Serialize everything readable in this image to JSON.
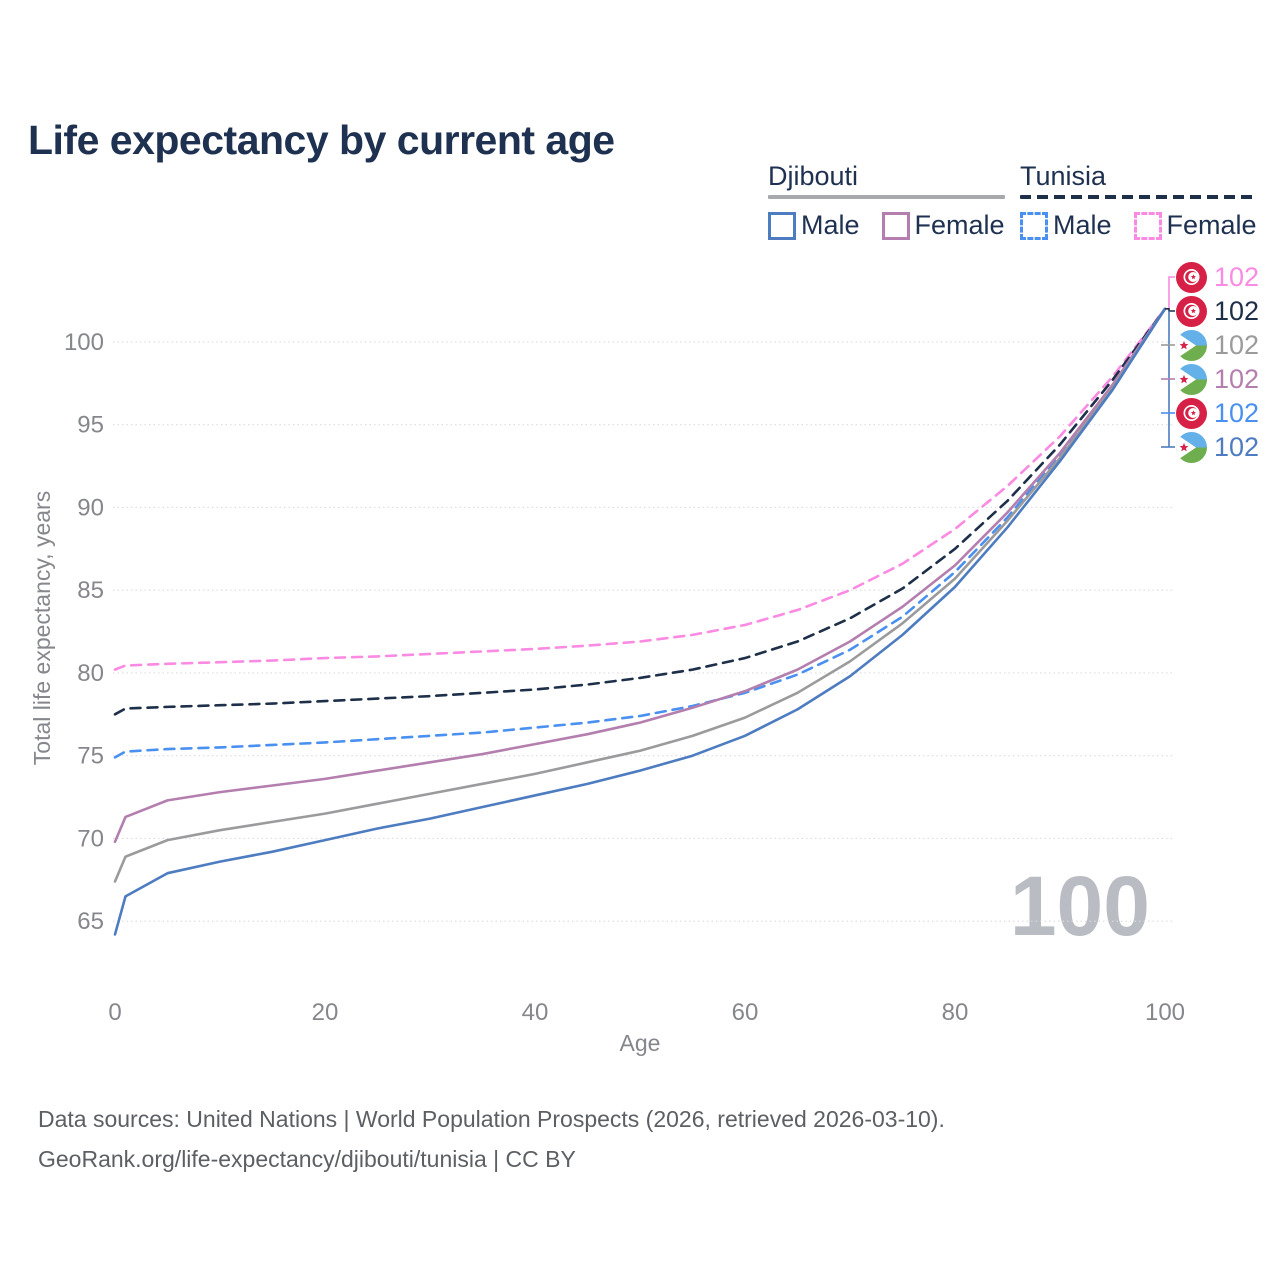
{
  "title": "Life expectancy by current age",
  "legend": {
    "groups": [
      {
        "country": "Djibouti",
        "line_style": "solid",
        "underline_color": "#a7a9ab",
        "items": [
          {
            "label": "Male",
            "color": "#4d7cc0"
          },
          {
            "label": "Female",
            "color": "#b47fae"
          }
        ]
      },
      {
        "country": "Tunisia",
        "line_style": "dashed",
        "underline_color": "#1d2f49",
        "items": [
          {
            "label": "Male",
            "color": "#4a90f0"
          },
          {
            "label": "Female",
            "color": "#fb8ae2"
          }
        ]
      }
    ]
  },
  "chart_data": {
    "type": "line",
    "title": "Life expectancy by current age",
    "xlabel": "Age",
    "ylabel": "Total life expectancy, years",
    "xlim": [
      0,
      100
    ],
    "ylim": [
      63.5,
      103.5
    ],
    "x_ticks": [
      0,
      20,
      40,
      60,
      80,
      100
    ],
    "y_ticks": [
      65,
      70,
      75,
      80,
      85,
      90,
      95,
      100
    ],
    "grid": "horizontal-dotted",
    "legend_position": "top-right",
    "x": [
      0,
      1,
      5,
      10,
      15,
      20,
      25,
      30,
      35,
      40,
      45,
      50,
      55,
      60,
      65,
      70,
      75,
      80,
      85,
      90,
      95,
      100
    ],
    "series": [
      {
        "name": "Tunisia Female",
        "country": "Tunisia",
        "sex": "Female",
        "color": "#fb8ae2",
        "dashed": true,
        "end_value": 102,
        "values": [
          80.2,
          80.45,
          80.55,
          80.65,
          80.75,
          80.9,
          81.0,
          81.15,
          81.3,
          81.45,
          81.65,
          81.9,
          82.3,
          82.9,
          83.8,
          85.0,
          86.6,
          88.7,
          91.3,
          94.3,
          97.9,
          102
        ]
      },
      {
        "name": "Tunisia Both sexes",
        "country": "Tunisia",
        "sex": "Both sexes",
        "color": "#1d2f49",
        "dashed": true,
        "end_value": 102,
        "values": [
          77.5,
          77.85,
          77.95,
          78.05,
          78.15,
          78.3,
          78.45,
          78.6,
          78.8,
          79.0,
          79.3,
          79.7,
          80.2,
          80.9,
          81.9,
          83.3,
          85.1,
          87.5,
          90.4,
          93.8,
          97.7,
          102
        ]
      },
      {
        "name": "Tunisia Male",
        "country": "Tunisia",
        "sex": "Male",
        "color": "#4a90f0",
        "dashed": true,
        "end_value": 102,
        "values": [
          74.9,
          75.25,
          75.4,
          75.5,
          75.65,
          75.8,
          76.0,
          76.2,
          76.4,
          76.7,
          77.0,
          77.4,
          78.0,
          78.8,
          79.9,
          81.4,
          83.4,
          86.1,
          89.4,
          93.2,
          97.4,
          102
        ]
      },
      {
        "name": "Djibouti Female",
        "country": "Djibouti",
        "sex": "Female",
        "color": "#b47fae",
        "dashed": false,
        "end_value": 102,
        "values": [
          69.8,
          71.3,
          72.3,
          72.8,
          73.2,
          73.6,
          74.1,
          74.6,
          75.1,
          75.7,
          76.3,
          77.0,
          77.9,
          78.9,
          80.2,
          81.9,
          84.0,
          86.5,
          89.7,
          93.3,
          97.4,
          102
        ]
      },
      {
        "name": "Djibouti Both sexes",
        "country": "Djibouti",
        "sex": "Both sexes",
        "color": "#9b9b9d",
        "dashed": false,
        "end_value": 102,
        "values": [
          67.4,
          68.9,
          69.9,
          70.5,
          71.0,
          71.5,
          72.1,
          72.7,
          73.3,
          73.9,
          74.6,
          75.3,
          76.2,
          77.3,
          78.8,
          80.7,
          83.0,
          85.7,
          89.2,
          93.0,
          97.2,
          102
        ]
      },
      {
        "name": "Djibouti Male",
        "country": "Djibouti",
        "sex": "Male",
        "color": "#4d7cc0",
        "dashed": false,
        "end_value": 102,
        "values": [
          64.2,
          66.5,
          67.9,
          68.6,
          69.2,
          69.9,
          70.6,
          71.2,
          71.9,
          72.6,
          73.3,
          74.1,
          75.0,
          76.2,
          77.8,
          79.8,
          82.3,
          85.2,
          88.8,
          92.8,
          97.1,
          102
        ]
      }
    ]
  },
  "right_labels": [
    {
      "flag": "tunisia",
      "value": "102",
      "color": "#fb8ae2"
    },
    {
      "flag": "tunisia",
      "value": "102",
      "color": "#1d2f49"
    },
    {
      "flag": "djibouti",
      "value": "102",
      "color": "#9b9b9d"
    },
    {
      "flag": "djibouti",
      "value": "102",
      "color": "#b47fae"
    },
    {
      "flag": "tunisia",
      "value": "102",
      "color": "#4a90f0"
    },
    {
      "flag": "djibouti",
      "value": "102",
      "color": "#4d7cc0"
    }
  ],
  "age_counter": "100",
  "footer": {
    "line1": "Data sources: United Nations | World Population Prospects (2026, retrieved 2026-03-10).",
    "line2": "GeoRank.org/life-expectancy/djibouti/tunisia | CC BY"
  }
}
